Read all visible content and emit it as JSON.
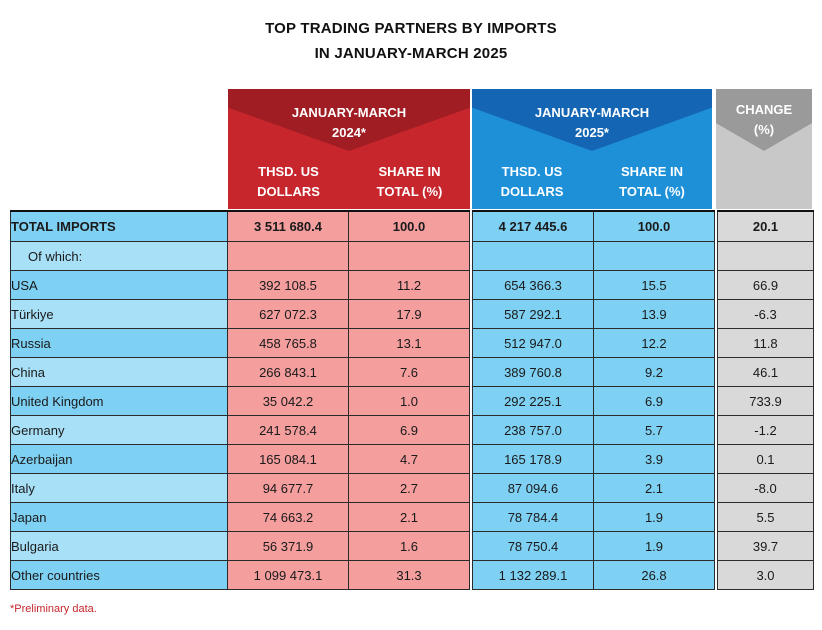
{
  "title": [
    "TOP TRADING PARTNERS BY IMPORTS",
    "IN JANUARY-MARCH 2025"
  ],
  "headers": {
    "period_2024": [
      "JANUARY-MARCH",
      "2024*"
    ],
    "period_2025": [
      "JANUARY-MARCH",
      "2025*"
    ],
    "change": [
      "CHANGE",
      "(%)"
    ],
    "thsd_usd": [
      "THSD. US",
      "DOLLARS"
    ],
    "share": [
      "SHARE IN",
      "TOTAL (%)"
    ]
  },
  "colors": {
    "red_header": "#c6262c",
    "red_cap": "#9f1d23",
    "blue_header": "#1e90d8",
    "blue_cap": "#1466b4",
    "grey_header": "#c8c8c8",
    "red_cells": "#f49e9e",
    "blue_cells": "#7fd1f4",
    "grey_cells": "#d9d9d9"
  },
  "chart_data": {
    "type": "table",
    "title": "TOP TRADING PARTNERS BY IMPORTS IN JANUARY-MARCH 2025",
    "columns": [
      "",
      "JANUARY-MARCH 2024* THSD. US DOLLARS",
      "JANUARY-MARCH 2024* SHARE IN TOTAL (%)",
      "JANUARY-MARCH 2025* THSD. US DOLLARS",
      "JANUARY-MARCH 2025* SHARE IN TOTAL (%)",
      "CHANGE (%)"
    ],
    "total": {
      "label": "TOTAL IMPORTS",
      "usd_2024": "3 511 680.4",
      "share_2024": "100.0",
      "usd_2025": "4 217 445.6",
      "share_2025": "100.0",
      "change": "20.1"
    },
    "subheader": "Of which:",
    "rows": [
      {
        "label": "USA",
        "usd_2024": "392 108.5",
        "share_2024": "11.2",
        "usd_2025": "654 366.3",
        "share_2025": "15.5",
        "change": "66.9"
      },
      {
        "label": "Türkiye",
        "usd_2024": "627 072.3",
        "share_2024": "17.9",
        "usd_2025": "587 292.1",
        "share_2025": "13.9",
        "change": "-6.3"
      },
      {
        "label": "Russia",
        "usd_2024": "458 765.8",
        "share_2024": "13.1",
        "usd_2025": "512 947.0",
        "share_2025": "12.2",
        "change": "11.8"
      },
      {
        "label": "China",
        "usd_2024": "266 843.1",
        "share_2024": "7.6",
        "usd_2025": "389 760.8",
        "share_2025": "9.2",
        "change": "46.1"
      },
      {
        "label": "United Kingdom",
        "usd_2024": "35 042.2",
        "share_2024": "1.0",
        "usd_2025": "292 225.1",
        "share_2025": "6.9",
        "change": "733.9"
      },
      {
        "label": "Germany",
        "usd_2024": "241 578.4",
        "share_2024": "6.9",
        "usd_2025": "238 757.0",
        "share_2025": "5.7",
        "change": "-1.2"
      },
      {
        "label": "Azerbaijan",
        "usd_2024": "165 084.1",
        "share_2024": "4.7",
        "usd_2025": "165 178.9",
        "share_2025": "3.9",
        "change": "0.1"
      },
      {
        "label": "Italy",
        "usd_2024": "94 677.7",
        "share_2024": "2.7",
        "usd_2025": "87 094.6",
        "share_2025": "2.1",
        "change": "-8.0"
      },
      {
        "label": "Japan",
        "usd_2024": "74 663.2",
        "share_2024": "2.1",
        "usd_2025": "78 784.4",
        "share_2025": "1.9",
        "change": "5.5"
      },
      {
        "label": "Bulgaria",
        "usd_2024": "56 371.9",
        "share_2024": "1.6",
        "usd_2025": "78 750.4",
        "share_2025": "1.9",
        "change": "39.7"
      },
      {
        "label": "Other countries",
        "usd_2024": "1 099 473.1",
        "share_2024": "31.3",
        "usd_2025": "1 132 289.1",
        "share_2025": "26.8",
        "change": "3.0"
      }
    ]
  },
  "footnote": "*Preliminary data."
}
